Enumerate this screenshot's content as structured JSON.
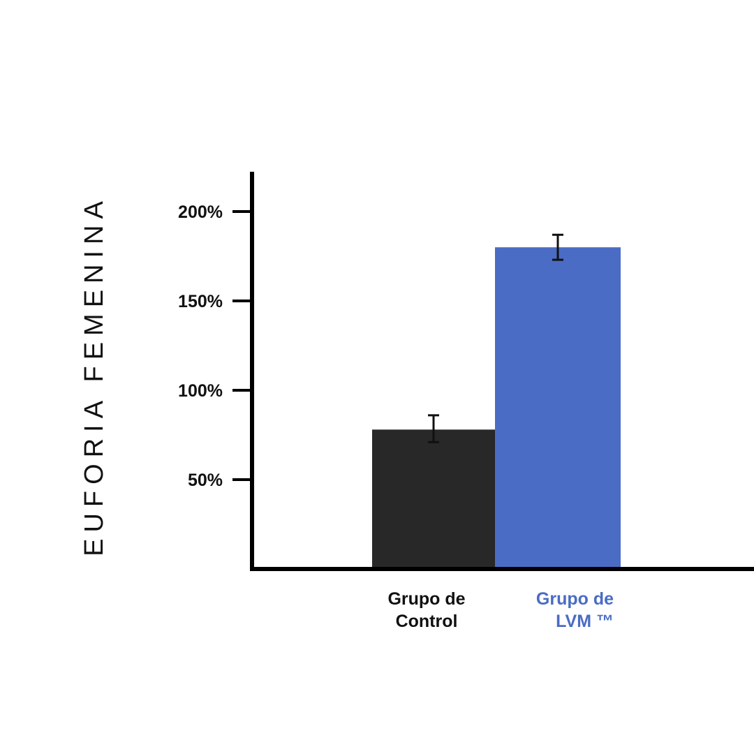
{
  "chart_data": {
    "type": "bar",
    "ylabel": "EUFORIA FEMENINA",
    "ylim": [
      0,
      220
    ],
    "yticks": [
      {
        "value": 50,
        "label": "50%"
      },
      {
        "value": 100,
        "label": "100%"
      },
      {
        "value": 150,
        "label": "150%"
      },
      {
        "value": 200,
        "label": "200%"
      }
    ],
    "categories": [
      {
        "lines": [
          "Grupo de",
          "Control"
        ],
        "color": "#111111",
        "align": "center"
      },
      {
        "lines": [
          "Grupo de",
          "LVM ™"
        ],
        "color": "#4a6cc4",
        "align": "right"
      }
    ],
    "values": [
      78,
      180
    ],
    "errors": [
      {
        "low": 71,
        "high": 86
      },
      {
        "low": 173,
        "high": 187
      }
    ],
    "bar_colors": [
      "#282828",
      "#4a6cc4"
    ],
    "grid": false,
    "legend": "none"
  }
}
